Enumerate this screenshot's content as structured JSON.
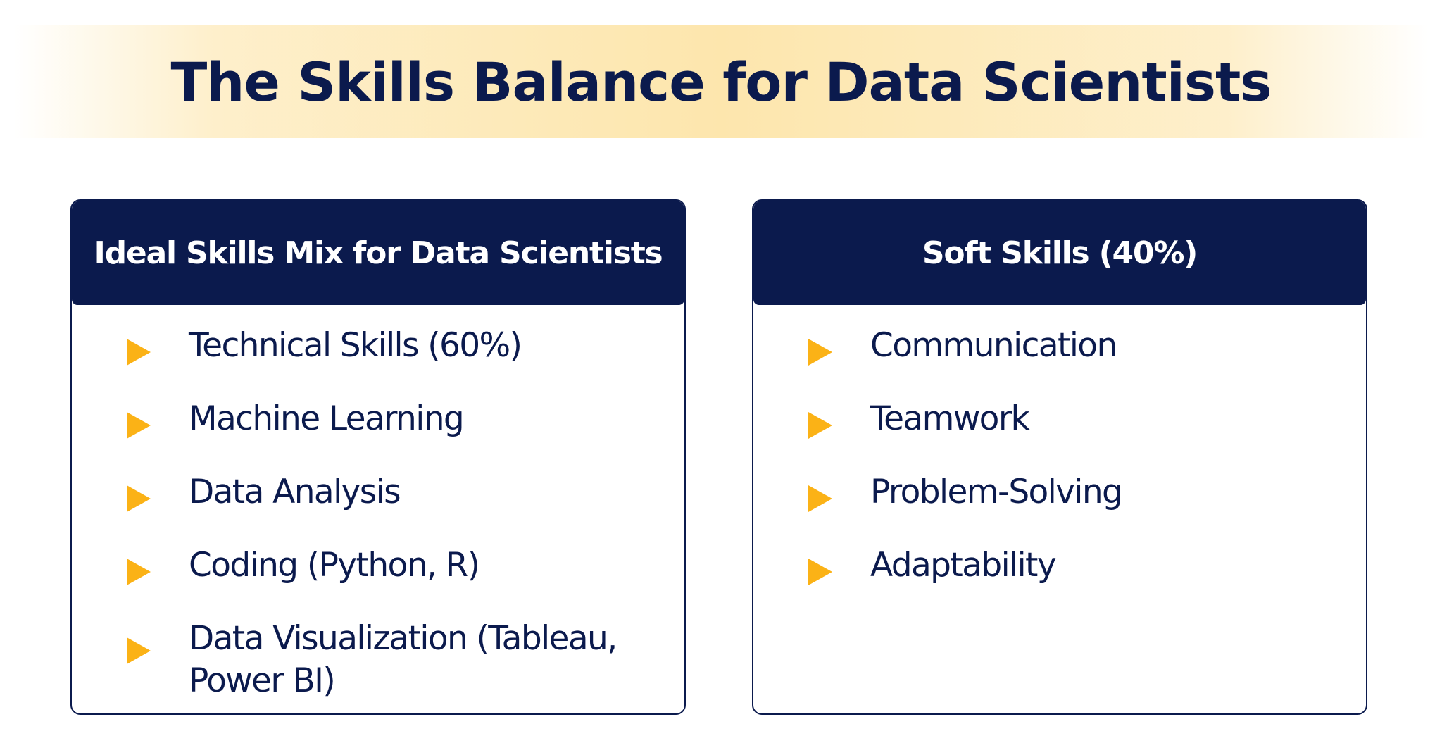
{
  "title": "The Skills Balance for Data Scientists",
  "colors": {
    "navy": "#0b1a4d",
    "accent": "#fbb216",
    "band": "#fde6ad"
  },
  "cards": [
    {
      "title": "Ideal Skills Mix for Data Scientists",
      "items": [
        "Technical Skills (60%)",
        "Machine Learning",
        "Data Analysis",
        "Coding (Python, R)",
        "Data Visualization (Tableau, Power BI)"
      ]
    },
    {
      "title": "Soft Skills (40%)",
      "items": [
        "Communication",
        "Teamwork",
        "Problem-Solving",
        "Adaptability"
      ]
    }
  ],
  "bullet_icon": "play-triangle-icon"
}
